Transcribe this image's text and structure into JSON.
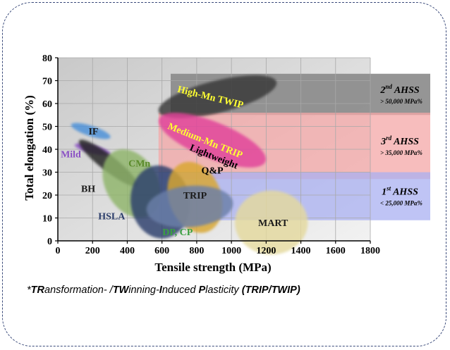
{
  "chart_data": {
    "type": "scatter",
    "title": "",
    "xlabel": "Tensile strength (MPa)",
    "ylabel": "Total elongation (%)",
    "xlim": [
      0,
      1800
    ],
    "ylim": [
      0,
      80
    ],
    "xticks": [
      "0",
      "200",
      "400",
      "600",
      "800",
      "1000",
      "1200",
      "1400",
      "1600",
      "1800"
    ],
    "yticks": [
      "0",
      "10",
      "20",
      "30",
      "40",
      "50",
      "60",
      "70",
      "80"
    ],
    "grid": true,
    "bands": [
      {
        "name": "2nd AHSS",
        "sup": "nd",
        "base": "2",
        "label": "AHSS",
        "detail": "> 50,000 MPa%",
        "x": [
          650,
          1800
        ],
        "y": [
          55,
          73
        ],
        "color": "#8a8a8a"
      },
      {
        "name": "3rd AHSS",
        "sup": "rd",
        "base": "3",
        "label": "AHSS",
        "detail": "> 35,000 MPa%",
        "x": [
          580,
          1800
        ],
        "y": [
          27,
          56
        ],
        "color": "#f4a7a7"
      },
      {
        "name": "1st AHSS",
        "sup": "st",
        "base": "1",
        "label": "AHSS",
        "detail": "< 25,000 MPa%",
        "x": [
          580,
          1800
        ],
        "y": [
          9,
          30
        ],
        "color": "#a9b0f2"
      }
    ],
    "regions": [
      {
        "name": "High-Mn TWIP",
        "cx": 920,
        "cy": 63,
        "rx": 350,
        "ry": 7,
        "angle": -14,
        "color": "#383838",
        "label_x": 880,
        "label_y": 63,
        "label_color": "#ffff33",
        "label_angle": 14
      },
      {
        "name": "Medium-Mn TRIP",
        "cx": 890,
        "cy": 44,
        "rx": 330,
        "ry": 8,
        "angle": 22,
        "color": "#e0409a",
        "label_x": 850,
        "label_y": 44,
        "label_color": "#ffff33",
        "label_angle": 22
      },
      {
        "name": "Lightweight",
        "cx": 0,
        "cy": 0,
        "rx": 0,
        "ry": 0,
        "angle": 0,
        "color": "none",
        "label_x": 900,
        "label_y": 37,
        "label_color": "#000000",
        "label_angle": 22
      },
      {
        "name": "Q&P",
        "cx": 0,
        "cy": 0,
        "rx": 0,
        "ry": 0,
        "angle": 0,
        "color": "none",
        "label_x": 890,
        "label_y": 31,
        "label_color": "#000000",
        "label_angle": 0
      },
      {
        "name": "IF",
        "cx": 190,
        "cy": 48,
        "rx": 30,
        "ry": 9,
        "angle": -72,
        "color": "#4a90d9",
        "label_x": 205,
        "label_y": 48,
        "label_color": "#1a1a1a",
        "label_angle": 0
      },
      {
        "name": "Mild",
        "cx": 200,
        "cy": 40,
        "rx": 24,
        "ry": 8,
        "angle": -76,
        "color": "#8a4fc4",
        "label_x": 75,
        "label_y": 38,
        "label_color": "#8a4fc4",
        "label_angle": 0
      },
      {
        "name": "BH",
        "cx": 290,
        "cy": 34,
        "rx": 45,
        "ry": 16,
        "angle": -52,
        "color": "#222222",
        "label_x": 175,
        "label_y": 23,
        "label_color": "#1a1a1a",
        "label_angle": 0
      },
      {
        "name": "CMn",
        "cx": 425,
        "cy": 25,
        "rx": 150,
        "ry": 16,
        "angle": -30,
        "color": "#8fb46a",
        "label_x": 470,
        "label_y": 34,
        "label_color": "#5a8a2a",
        "label_angle": 0
      },
      {
        "name": "HSLA",
        "cx": 590,
        "cy": 17,
        "rx": 170,
        "ry": 16,
        "angle": -8,
        "color": "#2c3e6b",
        "label_x": 310,
        "label_y": 11,
        "label_color": "#2c3e6b",
        "label_angle": 0
      },
      {
        "name": "TRIP",
        "cx": 790,
        "cy": 19,
        "rx": 150,
        "ry": 16,
        "angle": -20,
        "color": "#d9a631",
        "label_x": 790,
        "label_y": 20,
        "label_color": "#1a1a1a",
        "label_angle": 0
      },
      {
        "name": "DP, CP",
        "cx": 760,
        "cy": 15,
        "rx": 250,
        "ry": 9,
        "angle": -5,
        "color": "#6a7fa8",
        "label_x": 690,
        "label_y": 4,
        "label_color": "#3aa040",
        "label_angle": 0
      },
      {
        "name": "MART",
        "cx": 1230,
        "cy": 8,
        "rx": 210,
        "ry": 14,
        "angle": 0,
        "color": "#e4d99e",
        "label_x": 1240,
        "label_y": 8,
        "label_color": "#1a1a1a",
        "label_angle": 0
      }
    ]
  },
  "footnote": {
    "prefix": "*",
    "p1b": "TR",
    "p1": "ansformation- /",
    "p2b": "TW",
    "p2": "inning-",
    "p3b": "I",
    "p3": "nduced ",
    "p4b": "P",
    "p4": "lasticity ",
    "p5b": "(TRIP/TWIP)"
  }
}
